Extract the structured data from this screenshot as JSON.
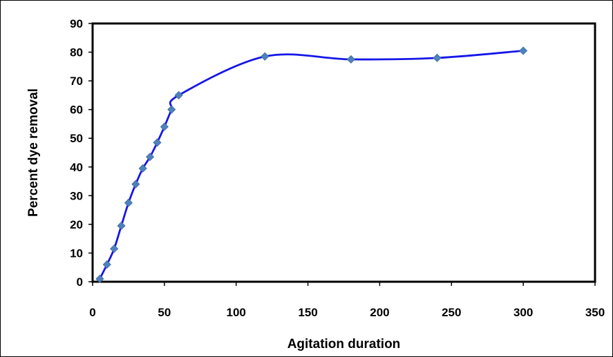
{
  "chart_data": {
    "type": "scatter",
    "title": "",
    "xlabel": "Agitation duration",
    "ylabel": "Percent dye removal",
    "xlim": [
      0,
      350
    ],
    "ylim": [
      0,
      90
    ],
    "xticks": [
      0,
      50,
      100,
      150,
      200,
      250,
      300,
      350
    ],
    "yticks": [
      0,
      10,
      20,
      30,
      40,
      50,
      60,
      70,
      80,
      90
    ],
    "grid": false,
    "legend": "none",
    "smooth_line": true,
    "series": [
      {
        "x": [
          5,
          10,
          15,
          20,
          25,
          30,
          35,
          40,
          45,
          50,
          55,
          60,
          120,
          180,
          240,
          300
        ],
        "y": [
          1,
          6,
          11.5,
          19.5,
          27.5,
          34,
          39.5,
          43.5,
          48.5,
          54,
          60,
          65,
          78.5,
          77.5,
          78,
          80.5
        ],
        "line_color": "#1616e8",
        "marker_color": "#4f81bd",
        "marker": "diamond"
      }
    ]
  }
}
